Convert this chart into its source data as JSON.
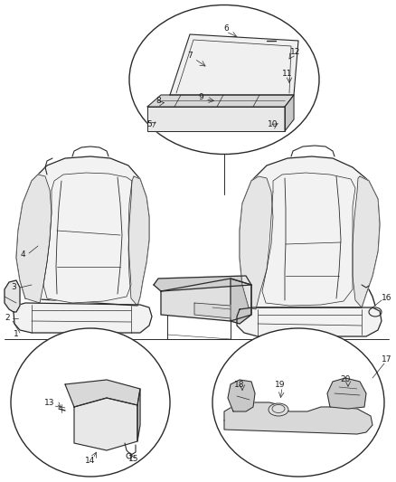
{
  "bg_color": "#ffffff",
  "line_color": "#2a2a2a",
  "label_color": "#1a1a1a",
  "font_size": 6.5,
  "figsize": [
    4.38,
    5.33
  ],
  "dpi": 100
}
